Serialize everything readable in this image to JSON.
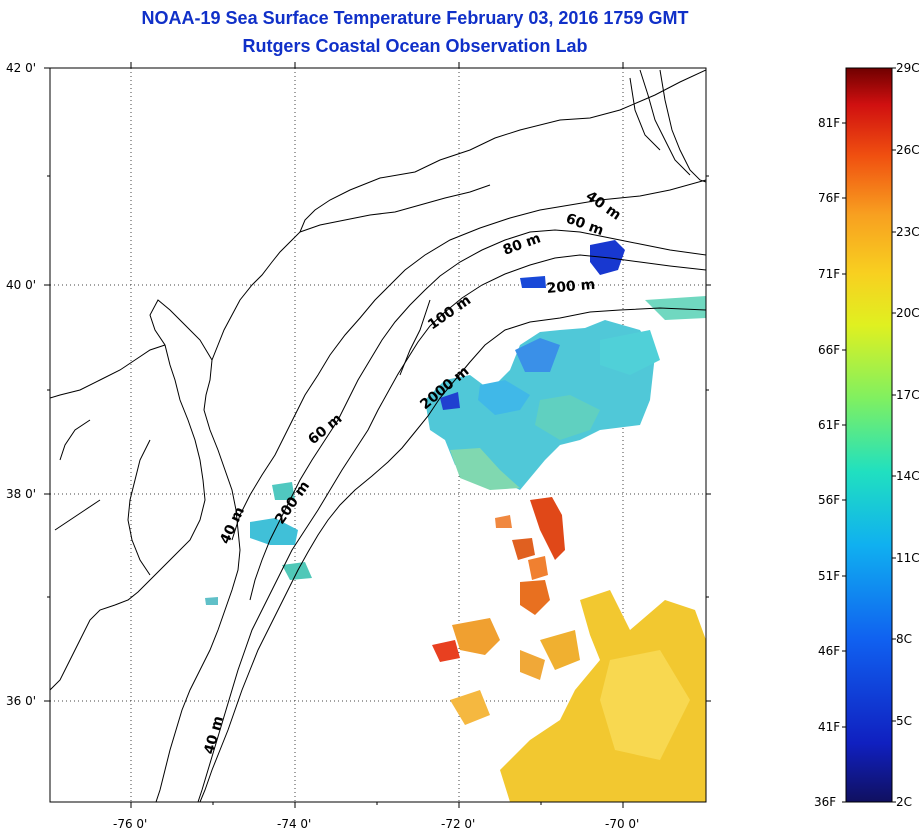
{
  "title": "NOAA-19 Sea Surface Temperature February 03, 2016 1759 GMT",
  "subtitle": "Rutgers Coastal Ocean Observation Lab",
  "lat_labels": [
    "42 0'",
    "40 0'",
    "38 0'",
    "36 0'"
  ],
  "lon_labels": [
    "-76 0'",
    "-74 0'",
    "-72 0'",
    "-70 0'"
  ],
  "bathy_labels": [
    "40 m",
    "60 m",
    "80 m",
    "200 m",
    "100 m",
    "2000 m",
    "60 m",
    "200 m",
    "40 m",
    "40 m"
  ],
  "colorbar": {
    "celsius": [
      "29C",
      "26C",
      "23C",
      "20C",
      "17C",
      "14C",
      "11C",
      "8C",
      "5C",
      "2C"
    ],
    "fahrenheit": [
      "81F",
      "76F",
      "71F",
      "66F",
      "61F",
      "56F",
      "51F",
      "46F",
      "41F",
      "36F"
    ]
  },
  "colors": {
    "title": "#1030c8",
    "coast": "#000000",
    "warm": "#e05020",
    "gulf_stream": "#f0c020",
    "shelf": "#40c0e0",
    "cold": "#1030d0"
  }
}
